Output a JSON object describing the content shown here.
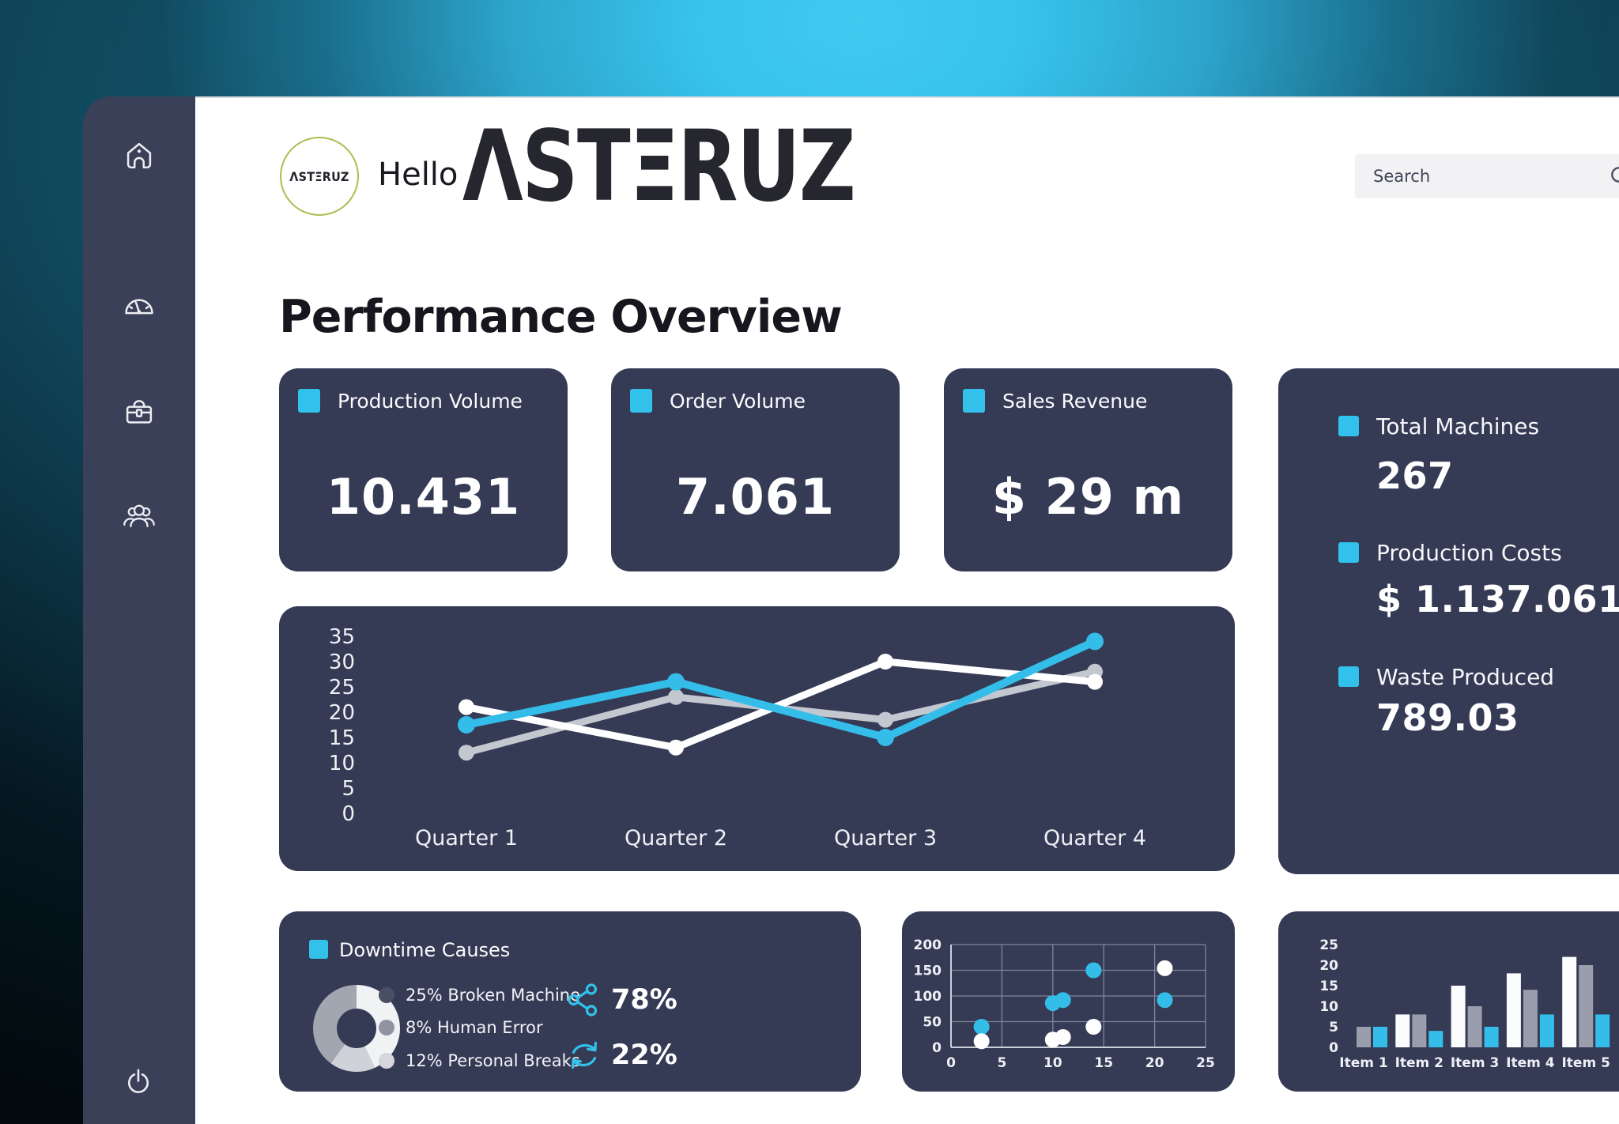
{
  "header": {
    "logo_badge_text": "ΛSTΞRUZ",
    "greeting": "Hello",
    "brand_wordmark": "ΛSTΞRUZ",
    "search_placeholder": "Search"
  },
  "page_title": "Performance Overview",
  "sidebar": {
    "icons": [
      "home",
      "gauge",
      "briefcase",
      "users",
      "power"
    ]
  },
  "colors": {
    "accent_cyan": "#32c1ea",
    "card_background": "#353a55",
    "sidebar_background": "#3b4059",
    "logo_ring": "#a8bf4e"
  },
  "stat_cards": [
    {
      "label": "Production Volume",
      "value": "10.431"
    },
    {
      "label": "Order Volume",
      "value": "7.061"
    },
    {
      "label": "Sales Revenue",
      "value": "$ 29 m"
    }
  ],
  "summary_panel": {
    "items": [
      {
        "label": "Total Machines",
        "value": "267"
      },
      {
        "label": "Production Costs",
        "value": "$ 1.137.061"
      },
      {
        "label": "Waste Produced",
        "value": "789.03"
      }
    ]
  },
  "downtime": {
    "title": "Downtime Causes",
    "legend": [
      {
        "text": "25% Broken Machine",
        "dot_color": "#4a4f63"
      },
      {
        "text": "8% Human Error",
        "dot_color": "#8f93a2"
      },
      {
        "text": "12% Personal Breaks",
        "dot_color": "#d5d7dd"
      }
    ],
    "kpis": [
      {
        "value": "78%",
        "icon": "share-nodes"
      },
      {
        "value": "22%",
        "icon": "sync-arrows"
      }
    ],
    "donut_segments": [
      {
        "color": "#f1f2f4",
        "percent": 43
      },
      {
        "color": "#cfd2d8",
        "percent": 17
      },
      {
        "color": "#a2a6b1",
        "percent": 40
      }
    ]
  },
  "chart_data": [
    {
      "id": "quarterly-lines",
      "type": "line",
      "title": "",
      "categories": [
        "Quarter 1",
        "Quarter 2",
        "Quarter 3",
        "Quarter 4"
      ],
      "series": [
        {
          "name": "gray-series",
          "color": "#c3c7cf",
          "values": [
            12,
            23,
            18.5,
            28
          ]
        },
        {
          "name": "white-series",
          "color": "#ffffff",
          "values": [
            21,
            13,
            30,
            26
          ]
        },
        {
          "name": "blue-series",
          "color": "#35bde9",
          "values": [
            17.5,
            26,
            15,
            34
          ]
        }
      ],
      "ylim": [
        0,
        35
      ],
      "yticks": [
        35,
        30,
        25,
        20,
        15,
        10,
        5,
        0
      ],
      "grid": false,
      "legend_position": "none"
    },
    {
      "id": "machine-scatter",
      "type": "scatter",
      "xlim": [
        0,
        25
      ],
      "ylim": [
        0,
        200
      ],
      "xticks": [
        0,
        5,
        10,
        15,
        20,
        25
      ],
      "yticks": [
        200,
        150,
        100,
        50,
        0
      ],
      "grid": true,
      "series": [
        {
          "name": "blue-points",
          "color": "#35bde9",
          "points": [
            [
              3,
              40
            ],
            [
              10,
              86
            ],
            [
              11,
              92
            ],
            [
              14,
              150
            ],
            [
              21,
              92
            ]
          ]
        },
        {
          "name": "white-points",
          "color": "#ffffff",
          "points": [
            [
              3,
              12
            ],
            [
              10,
              15
            ],
            [
              11,
              20
            ],
            [
              14,
              40
            ],
            [
              21,
              154
            ]
          ]
        }
      ]
    },
    {
      "id": "items-bar",
      "type": "bar",
      "categories": [
        "Item 1",
        "Item 2",
        "Item 3",
        "Item 4",
        "Item 5"
      ],
      "ylim": [
        0,
        25
      ],
      "yticks": [
        25,
        20,
        15,
        10,
        5,
        0
      ],
      "grid": false,
      "series": [
        {
          "name": "white-bars",
          "color": "#fbfcfd",
          "values": [
            0,
            8,
            15,
            18,
            22
          ]
        },
        {
          "name": "gray-bars",
          "color": "#9a9eac",
          "values": [
            5,
            8,
            10,
            14,
            20
          ]
        },
        {
          "name": "blue-bars",
          "color": "#35bde9",
          "values": [
            5,
            4,
            5,
            8,
            8
          ]
        }
      ]
    }
  ]
}
